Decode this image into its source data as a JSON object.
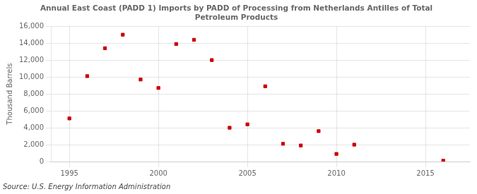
{
  "chart_data": {
    "type": "scatter",
    "title": "Annual East Coast (PADD 1) Imports by PADD of Processing from Netherlands Antilles of Total\nPetroleum Products",
    "ylabel": "Thousand Barrels",
    "source": "Source: U.S. Energy Information Administration",
    "x": [
      1995,
      1996,
      1997,
      1998,
      1999,
      2000,
      2001,
      2002,
      2003,
      2004,
      2005,
      2006,
      2007,
      2008,
      2009,
      2010,
      2011,
      2016
    ],
    "values": [
      5100,
      10100,
      13400,
      15000,
      9700,
      8700,
      13900,
      14400,
      12000,
      4000,
      4400,
      8900,
      2100,
      1900,
      3600,
      900,
      2000,
      100
    ],
    "color": "#cc0000",
    "marker": "square",
    "xlim": [
      1994.0,
      2017.5
    ],
    "xticks": [
      1995,
      2000,
      2005,
      2010,
      2015
    ],
    "ylim": [
      0,
      16000
    ],
    "yticks": [
      0,
      {
        "value": 2000,
        "label": "2,000"
      },
      {
        "value": 4000,
        "label": "4,000"
      },
      {
        "value": 6000,
        "label": "6,000"
      },
      {
        "value": 8000,
        "label": "8,000"
      },
      {
        "value": 10000,
        "label": "10,000"
      },
      {
        "value": 12000,
        "label": "12,000"
      },
      {
        "value": 14000,
        "label": "14,000"
      },
      {
        "value": 16000,
        "label": "16,000"
      }
    ],
    "grid": true
  }
}
